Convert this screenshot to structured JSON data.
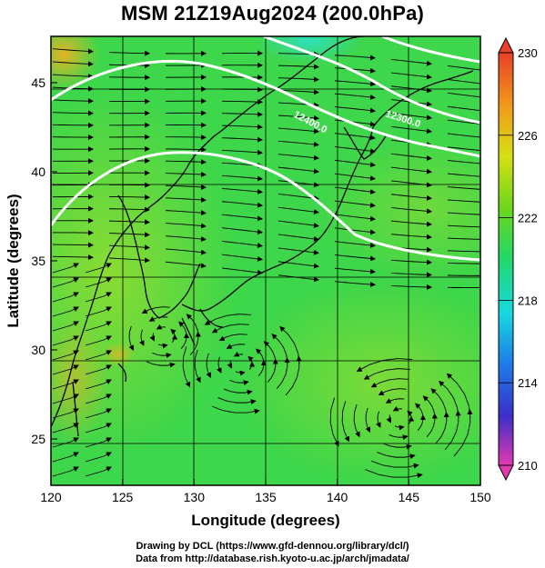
{
  "title": "MSM 21Z19Aug2024 (200.0hPa)",
  "x_axis": {
    "label": "Longitude (degrees)",
    "ticks": [
      "120",
      "125",
      "130",
      "135",
      "140",
      "145",
      "150"
    ],
    "range": [
      120,
      150
    ]
  },
  "y_axis": {
    "label": "Latitude  (degrees)",
    "ticks": [
      "25",
      "30",
      "35",
      "40",
      "45"
    ],
    "range": [
      22.4,
      47.6
    ]
  },
  "colorbar": {
    "ticks": [
      "230",
      "226",
      "222",
      "218",
      "214",
      "210"
    ],
    "range": [
      210,
      230
    ],
    "colors": [
      "#e23ab0",
      "#3b2fc9",
      "#1d7fe8",
      "#18d8df",
      "#22d86a",
      "#6ad61c",
      "#d6df14",
      "#f29a1a",
      "#e8402a"
    ]
  },
  "contours": [
    {
      "label": "12300.0"
    },
    {
      "label": "12400.0"
    }
  ],
  "credits": {
    "line1": "Drawing by DCL (https://www.gfd-dennou.org/library/dcl/)",
    "line2": "Data from http://database.rish.kyoto-u.ac.jp/arch/jmadata/"
  }
}
